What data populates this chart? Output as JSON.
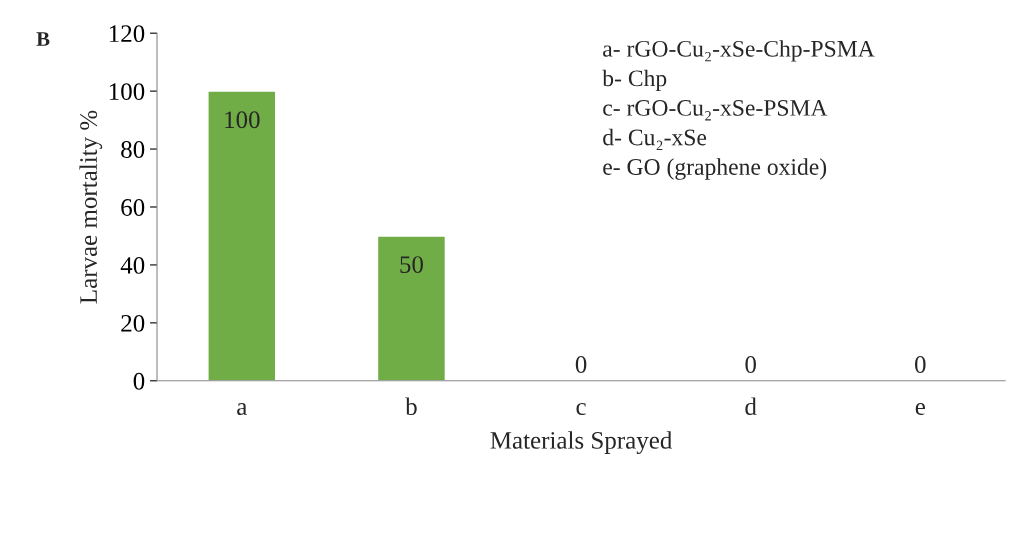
{
  "chart_data": {
    "type": "bar",
    "xlabel": "Materials Sprayed",
    "ylabel": "Larvae mortality %",
    "categories": [
      "a",
      "b",
      "c",
      "d",
      "e"
    ],
    "values": [
      100,
      50,
      0,
      0,
      0
    ],
    "color": "#70ad47",
    "ylim": [
      0,
      120
    ],
    "yticks": [
      0,
      20,
      40,
      60,
      80,
      100,
      120
    ],
    "grid": false,
    "data_labels": true,
    "annotations": [
      "B",
      "a- rGO-Cu₂-xSe-Chp-PSMA",
      "b- Chp",
      "c- rGO-Cu₂-xSe-PSMA",
      "d- Cu₂-xSe",
      "e- GO (graphene oxide)"
    ]
  }
}
